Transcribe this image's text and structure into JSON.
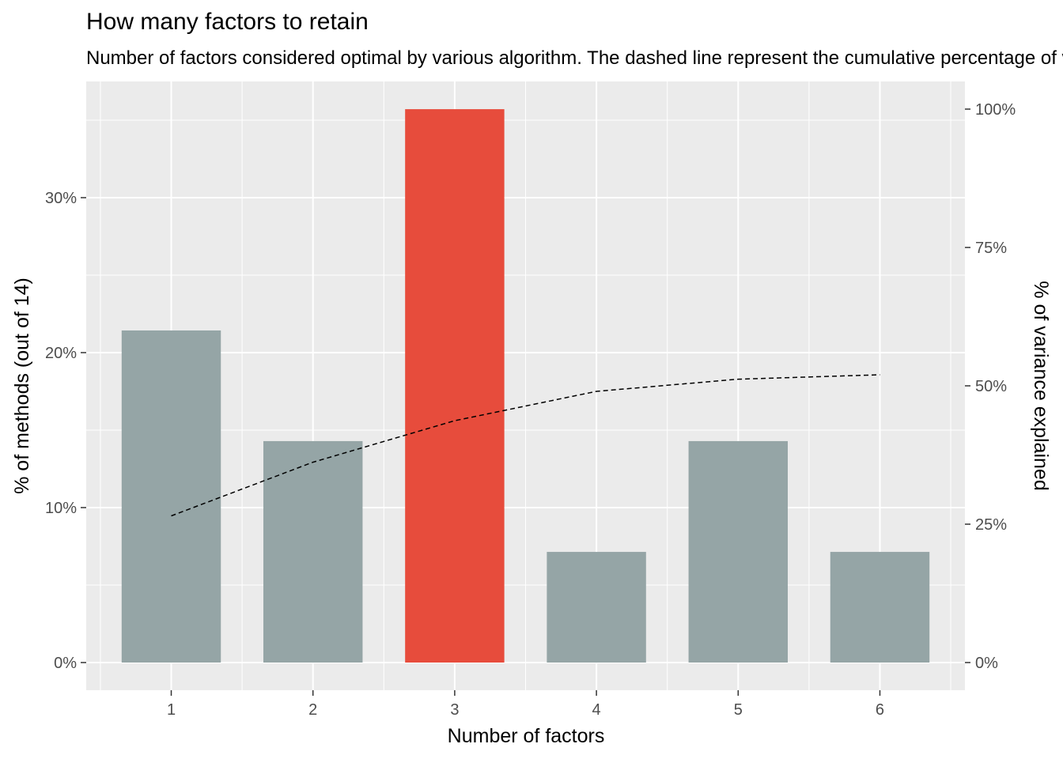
{
  "chart_data": {
    "type": "bar",
    "title": "How many factors to retain",
    "subtitle": "Number of factors considered optimal by various algorithm. The dashed line represent the cumulative percentage of variance explained",
    "xlabel": "Number of factors",
    "ylabel": "% of methods (out of 14)",
    "y2label": "% of variance explained",
    "categories": [
      "1",
      "2",
      "3",
      "4",
      "5",
      "6"
    ],
    "values": [
      0.2143,
      0.1429,
      0.3571,
      0.0714,
      0.1429,
      0.0714
    ],
    "bar_colors": [
      "#95a5a6",
      "#95a5a6",
      "#e74c3c",
      "#95a5a6",
      "#95a5a6",
      "#95a5a6"
    ],
    "ylim": [
      -0.017857,
      0.375
    ],
    "yticks": [
      0,
      0.1,
      0.2,
      0.3
    ],
    "ytick_labels": [
      "0%",
      "10%",
      "20%",
      "30%"
    ],
    "line": {
      "name": "cumulative variance explained",
      "style": "dashed",
      "color": "#000000",
      "values": [
        0.265,
        0.362,
        0.437,
        0.49,
        0.512,
        0.52
      ]
    },
    "y2lim": [
      -0.05,
      1.05
    ],
    "y2ticks": [
      0,
      0.25,
      0.5,
      0.75,
      1.0
    ],
    "y2tick_labels": [
      "0%",
      "25%",
      "50%",
      "75%",
      "100%"
    ],
    "grid": true,
    "legend": "none"
  }
}
